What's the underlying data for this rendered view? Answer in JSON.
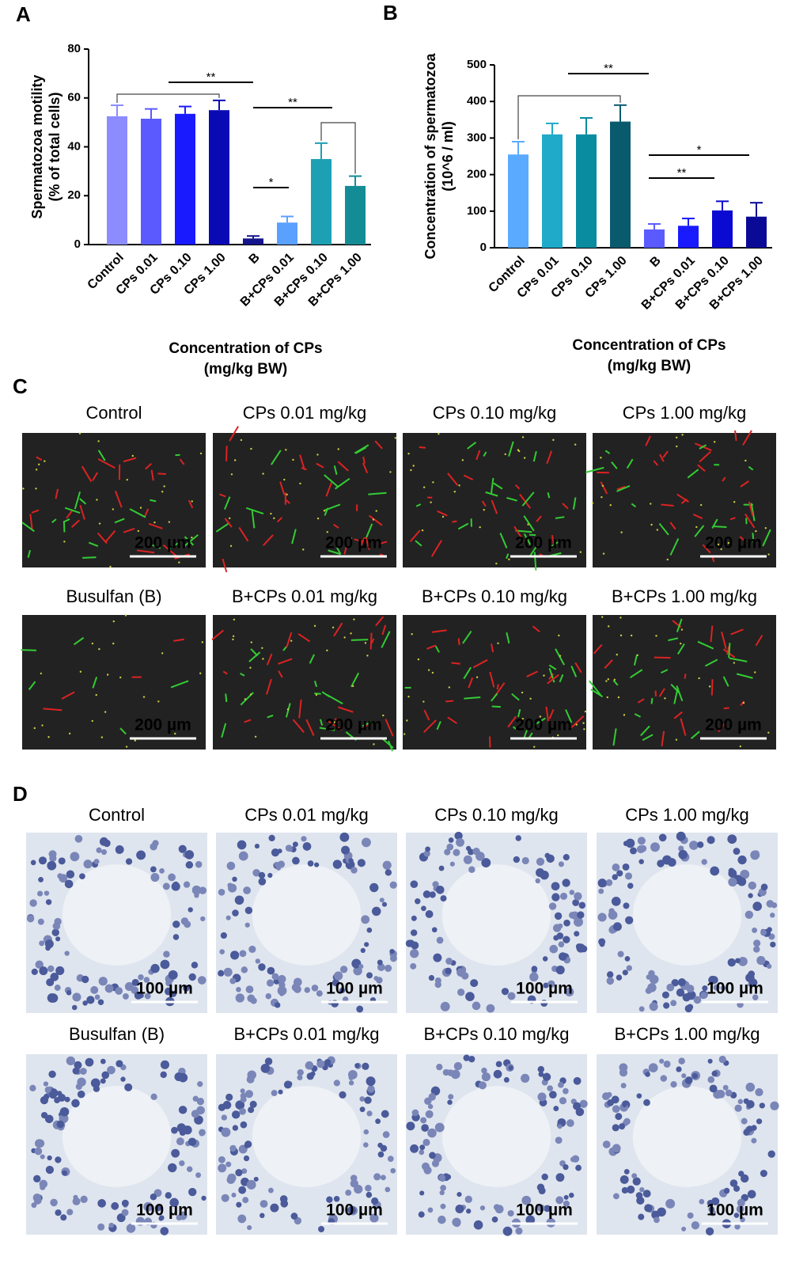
{
  "chart_data": [
    {
      "type": "bar",
      "panel": "A",
      "ylabel": [
        "Spermatozoa motility",
        "(% of total cells)"
      ],
      "xlabel": [
        "Concentration of CPs",
        "(mg/kg BW)"
      ],
      "categories": [
        "Control",
        "CPs 0.01",
        "CPs 0.10",
        "CPs 1.00",
        "B",
        "B+CPs 0.01",
        "B+CPs 0.10",
        "B+CPs 1.00"
      ],
      "values": [
        52.5,
        51.5,
        53.5,
        55,
        2.5,
        9,
        35,
        24
      ],
      "errors": [
        4.5,
        4,
        3,
        4,
        1,
        2.5,
        6.5,
        4
      ],
      "colors": [
        "#8c8cff",
        "#5a5aff",
        "#1a1aff",
        "#0a0ab4",
        "#14148c",
        "#5aa0ff",
        "#1ea0b4",
        "#148c96"
      ],
      "ylim": [
        0,
        80
      ],
      "yticks": [
        0,
        20,
        40,
        60,
        80
      ],
      "annotations": [
        {
          "text": "**"
        },
        {
          "text": "**"
        },
        {
          "text": "*"
        }
      ]
    },
    {
      "type": "bar",
      "panel": "B",
      "ylabel": [
        "Concentration of spermatozoa",
        "(10^6 / ml)"
      ],
      "xlabel": [
        "Concentration of CPs",
        "(mg/kg BW)"
      ],
      "categories": [
        "Control",
        "CPs 0.01",
        "CPs 0.10",
        "CPs 1.00",
        "B",
        "B+CPs 0.01",
        "B+CPs 0.10",
        "B+CPs 1.00"
      ],
      "values": [
        255,
        310,
        310,
        345,
        50,
        60,
        102,
        85
      ],
      "errors": [
        35,
        30,
        45,
        45,
        15,
        20,
        25,
        38
      ],
      "colors": [
        "#5aaaff",
        "#1eaac8",
        "#0a8ca0",
        "#0a5a6e",
        "#5a5aff",
        "#1a1aff",
        "#0a0ad2",
        "#0a0a96"
      ],
      "ylim": [
        0,
        500
      ],
      "yticks": [
        0,
        100,
        200,
        300,
        400,
        500
      ],
      "annotations": [
        {
          "text": "**"
        },
        {
          "text": "*"
        },
        {
          "text": "**"
        }
      ]
    }
  ],
  "panel_c": {
    "label": "C",
    "images": [
      {
        "title": "Control",
        "scale": "200 µm"
      },
      {
        "title": "CPs 0.01 mg/kg",
        "scale": "200 µm"
      },
      {
        "title": "CPs 0.10 mg/kg",
        "scale": "200 µm"
      },
      {
        "title": "CPs 1.00 mg/kg",
        "scale": "200 µm"
      },
      {
        "title": "Busulfan (B)",
        "scale": "200 µm"
      },
      {
        "title": "B+CPs 0.01 mg/kg",
        "scale": "200 µm"
      },
      {
        "title": "B+CPs 0.10 mg/kg",
        "scale": "200 µm"
      },
      {
        "title": "B+CPs 1.00  mg/kg",
        "scale": "200 µm"
      }
    ]
  },
  "panel_d": {
    "label": "D",
    "images": [
      {
        "title": "Control",
        "scale": "100 µm"
      },
      {
        "title": "CPs 0.01 mg/kg",
        "scale": "100 µm"
      },
      {
        "title": "CPs 0.10 mg/kg",
        "scale": "100 µm"
      },
      {
        "title": "CPs 1.00 mg/kg",
        "scale": "100 µm"
      },
      {
        "title": "Busulfan (B)",
        "scale": "100 µm"
      },
      {
        "title": "B+CPs 0.01 mg/kg",
        "scale": "100 µm"
      },
      {
        "title": "B+CPs 0.10 mg/kg",
        "scale": "100 µm"
      },
      {
        "title": "B+CPs 1.00 mg/kg",
        "scale": "100 µm"
      }
    ]
  }
}
